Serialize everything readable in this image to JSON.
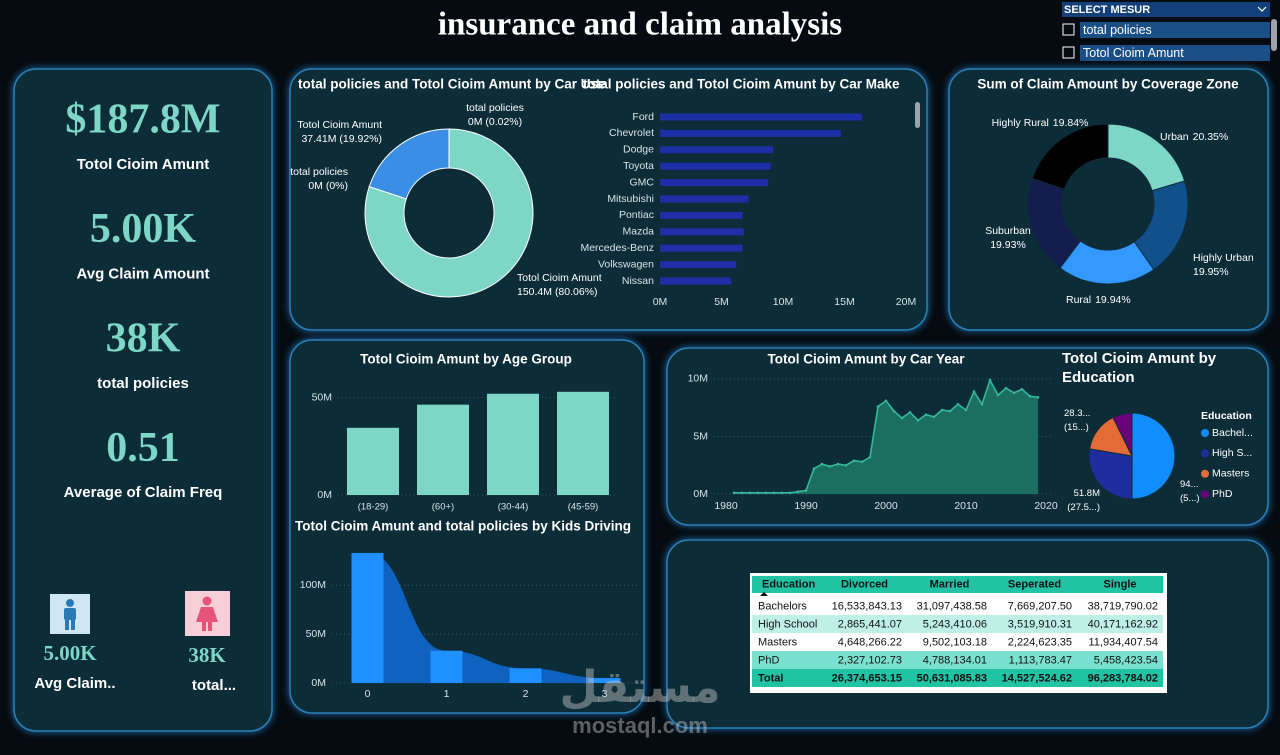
{
  "header": {
    "title": "insurance and claim analysis"
  },
  "slicer": {
    "title": "SELECT MESUR",
    "options": [
      "total policies",
      "Totol Cioim Amunt"
    ]
  },
  "kpis": [
    {
      "value": "$187.8M",
      "label": "Totol Cioim Amunt"
    },
    {
      "value": "5.00K",
      "label": "Avg Claim Amount"
    },
    {
      "value": "38K",
      "label": "total policies"
    },
    {
      "value": "0.51",
      "label": "Average of Claim Freq"
    }
  ],
  "mini_kpis": [
    {
      "value": "5.00K",
      "label": "Avg Claim.."
    },
    {
      "value": "38K",
      "label": "total..."
    }
  ],
  "chart_data": [
    {
      "type": "pie",
      "donut": true,
      "title": "total policies and Totol Cioim Amunt by Car Use",
      "categories": [
        "total policies",
        "Totol Cioim Amunt",
        "Totol Cioim Amunt",
        "total policies"
      ],
      "values": [
        0.02,
        80.06,
        19.92,
        0
      ],
      "value_labels": [
        "0M (0.02%)",
        "150.4M (80.06%)",
        "37.41M (19.92%)",
        "0M (0%)"
      ],
      "colors": [
        "#3a8ee6",
        "#7dd6c6",
        "#3a8ee6",
        "#7dd6c6"
      ]
    },
    {
      "type": "bar",
      "orientation": "horizontal",
      "title": "total policies and Totol Cioim Amunt by Car Make",
      "categories": [
        "Ford",
        "Chevrolet",
        "Dodge",
        "Toyota",
        "GMC",
        "Mitsubishi",
        "Pontiac",
        "Mazda",
        "Mercedes-Benz",
        "Volkswagen",
        "Nissan"
      ],
      "values": [
        16.4,
        14.7,
        9.2,
        9.0,
        8.8,
        7.2,
        6.7,
        6.8,
        6.7,
        6.2,
        5.8
      ],
      "color": "#1c2fa6",
      "xlim": [
        0,
        20
      ],
      "xticks": [
        {
          "value": 0,
          "label": "0M"
        },
        {
          "value": 5,
          "label": "5M"
        },
        {
          "value": 10,
          "label": "10M"
        },
        {
          "value": 15,
          "label": "15M"
        },
        {
          "value": 20,
          "label": "20M"
        }
      ],
      "grid": false
    },
    {
      "type": "pie",
      "donut": true,
      "title": "Sum of Claim Amount by Coverage Zone",
      "categories": [
        "Urban",
        "Highly Urban",
        "Rural",
        "Suburban",
        "Highly Rural"
      ],
      "values": [
        20.35,
        19.95,
        19.94,
        19.93,
        19.84
      ],
      "value_labels": [
        "20.35%",
        "19.95%",
        "19.94%",
        "19.93%",
        "19.84%"
      ],
      "colors": [
        "#7dd6c6",
        "#12508c",
        "#3399ff",
        "#151c4e",
        "#000000"
      ]
    },
    {
      "type": "bar",
      "title": "Totol Cioim Amunt by Age Group",
      "categories": [
        "(18-29)",
        "(60+)",
        "(30-44)",
        "(45-59)"
      ],
      "values": [
        34.5,
        46.4,
        52,
        53
      ],
      "color": "#7dd6c6",
      "ylim": [
        0,
        57
      ],
      "yticks": [
        {
          "value": 0,
          "label": "0M"
        },
        {
          "value": 50,
          "label": "50M"
        }
      ],
      "grid": true
    },
    {
      "type": "area",
      "title": "Totol Cioim Amunt by Car Year",
      "x": [
        1981,
        1982,
        1983,
        1984,
        1985,
        1986,
        1987,
        1988,
        1989,
        1990,
        1991,
        1992,
        1993,
        1994,
        1995,
        1996,
        1997,
        1998,
        1999,
        2000,
        2001,
        2002,
        2003,
        2004,
        2005,
        2006,
        2007,
        2008,
        2009,
        2010,
        2011,
        2012,
        2013,
        2014,
        2015,
        2016,
        2017,
        2018,
        2019
      ],
      "values": [
        0.1,
        0.1,
        0.1,
        0.1,
        0.1,
        0.1,
        0.1,
        0.1,
        0.2,
        0.3,
        2.2,
        2.6,
        2.4,
        2.6,
        2.5,
        2.9,
        2.8,
        3.2,
        7.6,
        8.1,
        7.2,
        6.6,
        7.1,
        6.4,
        6.9,
        6.7,
        7.3,
        7.2,
        7.8,
        7.3,
        8.9,
        7.8,
        9.9,
        8.6,
        9.2,
        8.8,
        9.1,
        8.5,
        8.4
      ],
      "color": "#1d7565",
      "line_color": "#34b89d",
      "xlim": [
        1978,
        2021
      ],
      "xticks": [
        1980,
        1990,
        2000,
        2010,
        2020
      ],
      "ylim": [
        0,
        10.3
      ],
      "yticks": [
        {
          "value": 0,
          "label": "0M"
        },
        {
          "value": 5,
          "label": "5M"
        },
        {
          "value": 10,
          "label": "10M"
        }
      ],
      "grid": true
    },
    {
      "type": "pie",
      "title": "Totol Cioim Amunt by Education",
      "legend_title": "Education",
      "categories": [
        "Bachel...",
        "High S...",
        "Masters",
        "PhD"
      ],
      "values": [
        94.0,
        51.8,
        28.3,
        13.7
      ],
      "value_labels": [
        "94...",
        "51.8M",
        "28.3...",
        null
      ],
      "share_labels": [
        "(5...)",
        "(27.5...)",
        "(15...)",
        null
      ],
      "colors": [
        "#118dff",
        "#1f2e9e",
        "#e66c37",
        "#6b007b"
      ]
    },
    {
      "type": "area",
      "title": "Totol Cioim Amunt and total policies by Kids Driving",
      "categories": [
        "0",
        "1",
        "2",
        "3"
      ],
      "values": [
        133,
        33,
        15,
        5
      ],
      "color": "#0f62c0",
      "line_color": "#1e90ff",
      "ylim": [
        0,
        135
      ],
      "yticks": [
        {
          "value": 0,
          "label": "0M"
        },
        {
          "value": 50,
          "label": "50M"
        },
        {
          "value": 100,
          "label": "100M"
        }
      ],
      "grid": true
    }
  ],
  "table": {
    "header": [
      "Education",
      "Divorced",
      "Married",
      "Seperated",
      "Single"
    ],
    "rows": [
      [
        "Bachelors",
        "16,533,843.13",
        "31,097,438.58",
        "7,669,207.50",
        "38,719,790.02"
      ],
      [
        "High School",
        "2,865,441.07",
        "5,243,410.06",
        "3,519,910.31",
        "40,171,162.92"
      ],
      [
        "Masters",
        "4,648,266.22",
        "9,502,103.18",
        "2,224,623.35",
        "11,934,407.54"
      ],
      [
        "PhD",
        "2,327,102.73",
        "4,788,134.01",
        "1,113,783.47",
        "5,458,423.54"
      ]
    ],
    "total": [
      "Total",
      "26,374,653.15",
      "50,631,085.83",
      "14,527,524.62",
      "96,283,784.02"
    ]
  },
  "watermark": {
    "logo": "مستقل",
    "site": "mostaql.com"
  }
}
